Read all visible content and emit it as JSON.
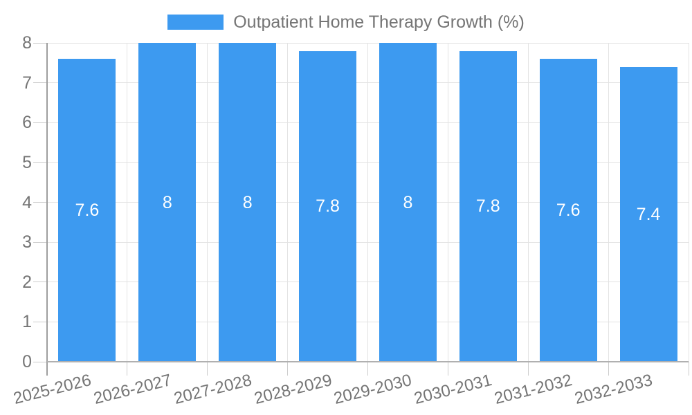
{
  "chart_data": {
    "type": "bar",
    "legend": "Outpatient Home Therapy Growth (%)",
    "legend_position": "top-center",
    "categories": [
      "2025-2026",
      "2026-2027",
      "2027-2028",
      "2028-2029",
      "2029-2030",
      "2030-2031",
      "2031-2032",
      "2032-2033"
    ],
    "values": [
      7.6,
      8,
      8,
      7.8,
      8,
      7.8,
      7.6,
      7.4
    ],
    "bar_labels": [
      "7.6",
      "8",
      "8",
      "7.8",
      "8",
      "7.8",
      "7.6",
      "7.4"
    ],
    "xlabel": "",
    "ylabel": "",
    "ylim": [
      0,
      8
    ],
    "yticks": [
      0,
      1,
      2,
      3,
      4,
      5,
      6,
      7,
      8
    ],
    "grid": true
  },
  "colors": {
    "bar": "#3d9af0",
    "bar_label": "#ffffff",
    "axis_text": "#757575",
    "gridline": "#e3e3e3",
    "tick": "#cccccc",
    "axis_line": "#9e9e9e",
    "baseline": "#b0b0b0",
    "background": "#ffffff"
  }
}
